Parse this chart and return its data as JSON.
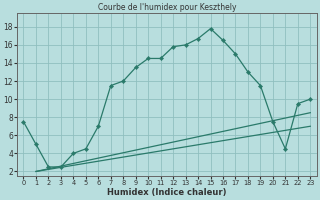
{
  "title": "Courbe de l'humidex pour Keszthely",
  "xlabel": "Humidex (Indice chaleur)",
  "bg_color": "#b8dede",
  "line_color": "#2a7a6a",
  "grid_color": "#90bfbf",
  "xlim": [
    -0.5,
    23.5
  ],
  "ylim": [
    1.5,
    19.5
  ],
  "xticks": [
    0,
    1,
    2,
    3,
    4,
    5,
    6,
    7,
    8,
    9,
    10,
    11,
    12,
    13,
    14,
    15,
    16,
    17,
    18,
    19,
    20,
    21,
    22,
    23
  ],
  "yticks": [
    2,
    4,
    6,
    8,
    10,
    12,
    14,
    16,
    18
  ],
  "line1_x": [
    0,
    1,
    2,
    3,
    4,
    5,
    6,
    7,
    8,
    9,
    10,
    11,
    12,
    13,
    14,
    15,
    16,
    17,
    18,
    19,
    20,
    21,
    22,
    23
  ],
  "line1_y": [
    7.5,
    5.0,
    2.5,
    2.5,
    4.0,
    4.5,
    7.0,
    11.5,
    12.0,
    13.5,
    14.5,
    14.5,
    15.8,
    16.0,
    16.7,
    17.8,
    16.5,
    15.0,
    13.0,
    11.5,
    7.5,
    4.5,
    9.5,
    10.0
  ],
  "line2_x": [
    1,
    23
  ],
  "line2_y": [
    2.0,
    8.5
  ],
  "line3_x": [
    1,
    23
  ],
  "line3_y": [
    2.0,
    7.0
  ]
}
